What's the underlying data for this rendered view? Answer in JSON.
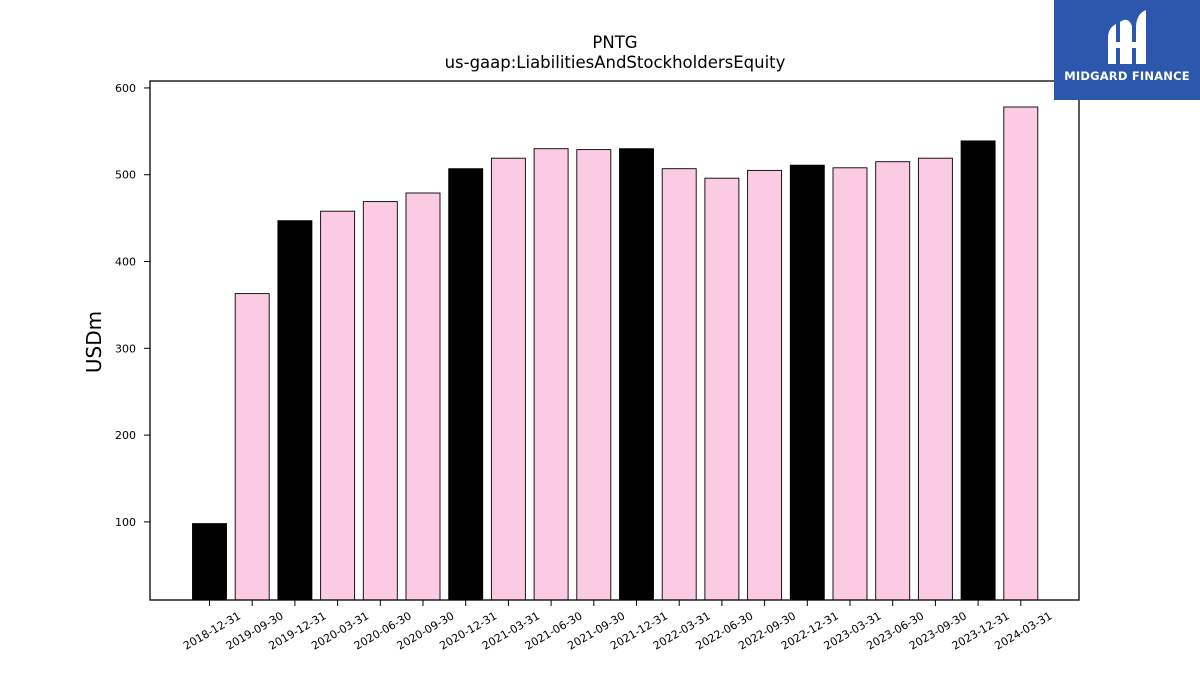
{
  "chart_data": {
    "type": "bar",
    "title": "PNTG",
    "subtitle": "us-gaap:LiabilitiesAndStockholdersEquity",
    "xlabel": "",
    "ylabel": "USDm",
    "ylim": [
      10,
      608
    ],
    "yticks": [
      100,
      200,
      300,
      400,
      500,
      600
    ],
    "categories": [
      "2018-12-31",
      "2019-09-30",
      "2019-12-31",
      "2020-03-31",
      "2020-06-30",
      "2020-09-30",
      "2020-12-31",
      "2021-03-31",
      "2021-06-30",
      "2021-09-30",
      "2021-12-31",
      "2022-03-31",
      "2022-06-30",
      "2022-09-30",
      "2022-12-31",
      "2023-03-31",
      "2023-06-30",
      "2023-09-30",
      "2023-12-31",
      "2024-03-31"
    ],
    "values": [
      98,
      363,
      447,
      458,
      469,
      479,
      507,
      519,
      530,
      529,
      530,
      507,
      496,
      505,
      511,
      508,
      515,
      519,
      539,
      578
    ],
    "bar_colors": [
      "#000000",
      "#fbcae3",
      "#000000",
      "#fbcae3",
      "#fbcae3",
      "#fbcae3",
      "#000000",
      "#fbcae3",
      "#fbcae3",
      "#fbcae3",
      "#000000",
      "#fbcae3",
      "#fbcae3",
      "#fbcae3",
      "#000000",
      "#fbcae3",
      "#fbcae3",
      "#fbcae3",
      "#000000",
      "#fbcae3"
    ],
    "grid": false,
    "legend": "none"
  },
  "logo": {
    "text": "MIDGARD FINANCE",
    "background": "#2b57ad"
  }
}
